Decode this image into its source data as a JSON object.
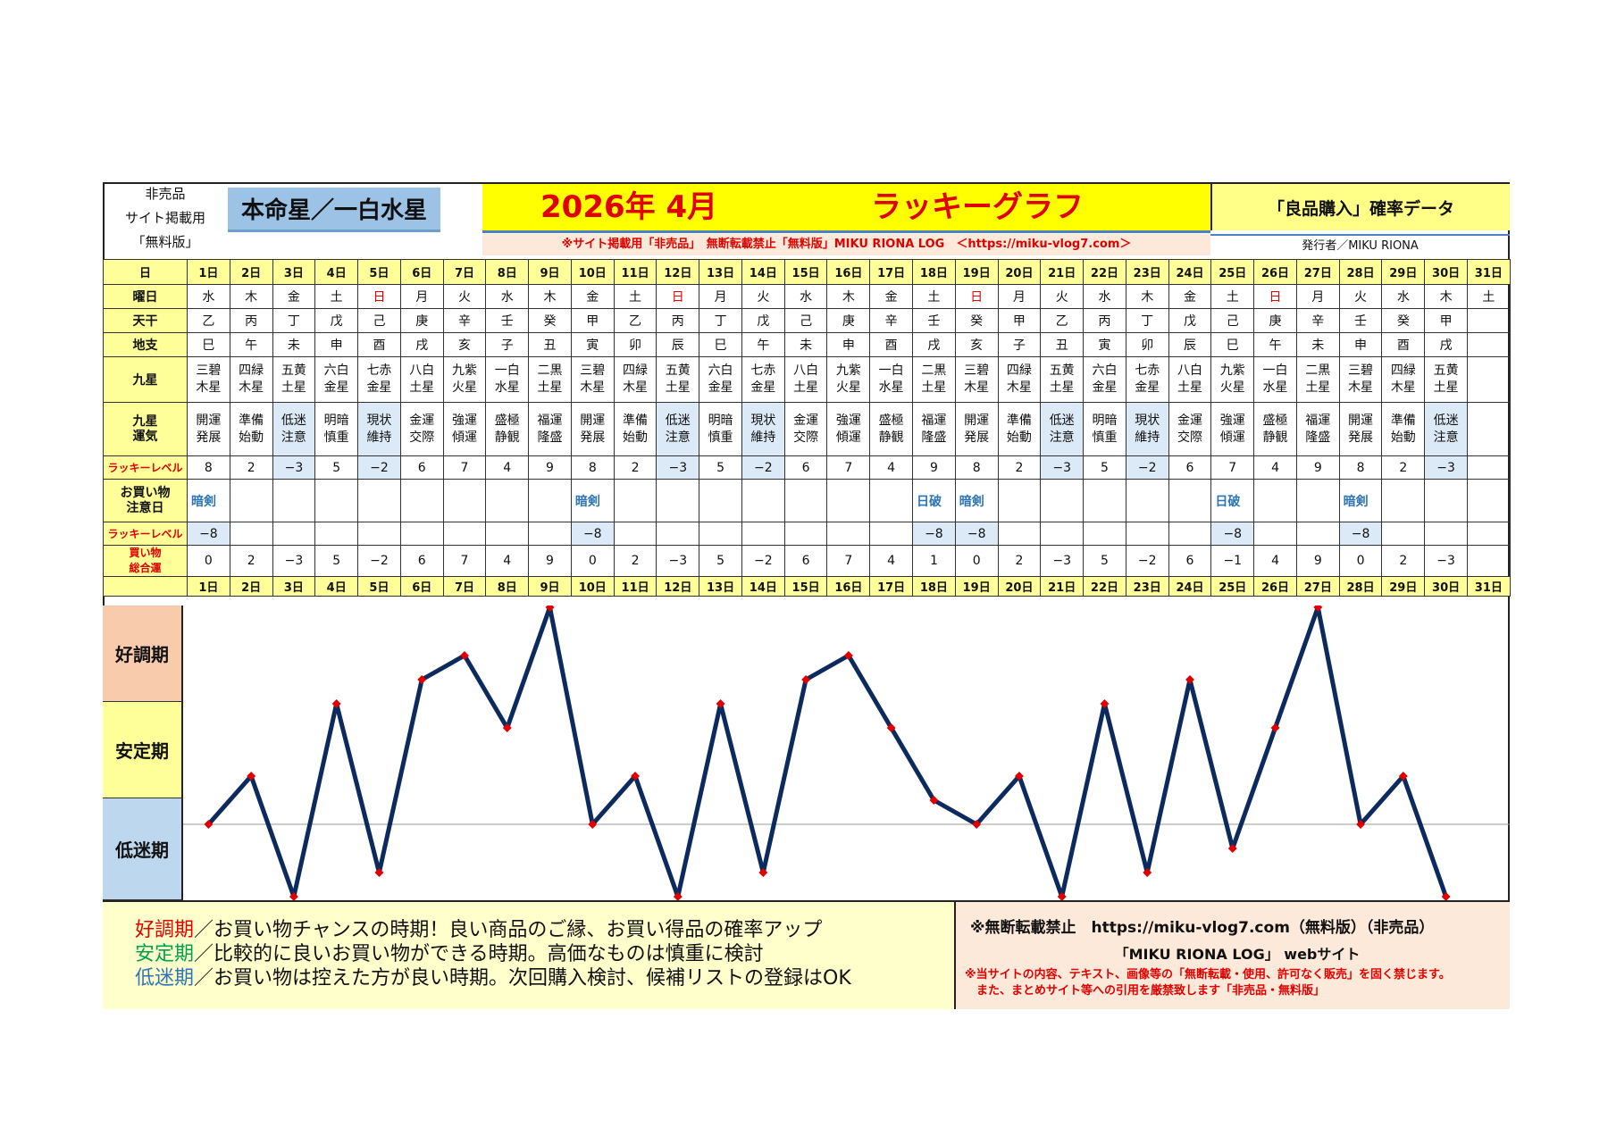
{
  "header": {
    "note_lines": [
      "非売品",
      "サイト掲載用",
      "「無料版」"
    ],
    "honmei": "本命星／一白水星",
    "year_month": "2026年 4月",
    "title": "ラッキーグラフ",
    "prob_label": "「良品購入」確率データ",
    "notice": "※サイト掲載用「非売品」　無断転載禁止「無料版」MIKU RIONA LOG　＜https://miku-vlog7.com＞",
    "publisher": "発行者／MIKU RIONA"
  },
  "row_labels": {
    "day": "日",
    "weekday": "曜日",
    "tenkan": "天干",
    "chishi": "地支",
    "kyusei": "九星",
    "kyusei_unki": [
      "九星",
      "運気"
    ],
    "lucky_level": "ラッキーレベル",
    "caution_day": [
      "お買い物",
      "注意日"
    ],
    "lucky_level2": "ラッキーレベル",
    "total": [
      "買い物",
      "総合運"
    ]
  },
  "days": [
    "1日",
    "2日",
    "3日",
    "4日",
    "5日",
    "6日",
    "7日",
    "8日",
    "9日",
    "10日",
    "11日",
    "12日",
    "13日",
    "14日",
    "15日",
    "16日",
    "17日",
    "18日",
    "19日",
    "20日",
    "21日",
    "22日",
    "23日",
    "24日",
    "25日",
    "26日",
    "27日",
    "28日",
    "29日",
    "30日",
    "31日"
  ],
  "weekdays": [
    "水",
    "木",
    "金",
    "土",
    "日",
    "月",
    "火",
    "水",
    "木",
    "金",
    "土",
    "日",
    "月",
    "火",
    "水",
    "木",
    "金",
    "土",
    "日",
    "月",
    "火",
    "水",
    "木",
    "金",
    "土",
    "日",
    "月",
    "火",
    "水",
    "木",
    "土"
  ],
  "tenkan": [
    "乙",
    "丙",
    "丁",
    "戊",
    "己",
    "庚",
    "辛",
    "壬",
    "癸",
    "甲",
    "乙",
    "丙",
    "丁",
    "戊",
    "己",
    "庚",
    "辛",
    "壬",
    "癸",
    "甲",
    "乙",
    "丙",
    "丁",
    "戊",
    "己",
    "庚",
    "辛",
    "壬",
    "癸",
    "甲",
    ""
  ],
  "chishi": [
    "巳",
    "午",
    "未",
    "申",
    "酉",
    "戌",
    "亥",
    "子",
    "丑",
    "寅",
    "卯",
    "辰",
    "巳",
    "午",
    "未",
    "申",
    "酉",
    "戌",
    "亥",
    "子",
    "丑",
    "寅",
    "卯",
    "辰",
    "巳",
    "午",
    "未",
    "申",
    "酉",
    "戌",
    ""
  ],
  "kyusei": [
    [
      "三碧",
      "木星"
    ],
    [
      "四緑",
      "木星"
    ],
    [
      "五黄",
      "土星"
    ],
    [
      "六白",
      "金星"
    ],
    [
      "七赤",
      "金星"
    ],
    [
      "八白",
      "土星"
    ],
    [
      "九紫",
      "火星"
    ],
    [
      "一白",
      "水星"
    ],
    [
      "二黒",
      "土星"
    ],
    [
      "三碧",
      "木星"
    ],
    [
      "四緑",
      "木星"
    ],
    [
      "五黄",
      "土星"
    ],
    [
      "六白",
      "金星"
    ],
    [
      "七赤",
      "金星"
    ],
    [
      "八白",
      "土星"
    ],
    [
      "九紫",
      "火星"
    ],
    [
      "一白",
      "水星"
    ],
    [
      "二黒",
      "土星"
    ],
    [
      "三碧",
      "木星"
    ],
    [
      "四緑",
      "木星"
    ],
    [
      "五黄",
      "土星"
    ],
    [
      "六白",
      "金星"
    ],
    [
      "七赤",
      "金星"
    ],
    [
      "八白",
      "土星"
    ],
    [
      "九紫",
      "火星"
    ],
    [
      "一白",
      "水星"
    ],
    [
      "二黒",
      "土星"
    ],
    [
      "三碧",
      "木星"
    ],
    [
      "四緑",
      "木星"
    ],
    [
      "五黄",
      "土星"
    ],
    [
      "",
      ""
    ]
  ],
  "unki": [
    [
      "開運",
      "発展"
    ],
    [
      "準備",
      "始動"
    ],
    [
      "低迷",
      "注意"
    ],
    [
      "明暗",
      "慎重"
    ],
    [
      "現状",
      "維持"
    ],
    [
      "金運",
      "交際"
    ],
    [
      "強運",
      "傾運"
    ],
    [
      "盛極",
      "静観"
    ],
    [
      "福運",
      "隆盛"
    ],
    [
      "開運",
      "発展"
    ],
    [
      "準備",
      "始動"
    ],
    [
      "低迷",
      "注意"
    ],
    [
      "明暗",
      "慎重"
    ],
    [
      "現状",
      "維持"
    ],
    [
      "金運",
      "交際"
    ],
    [
      "強運",
      "傾運"
    ],
    [
      "盛極",
      "静観"
    ],
    [
      "福運",
      "隆盛"
    ],
    [
      "開運",
      "発展"
    ],
    [
      "準備",
      "始動"
    ],
    [
      "低迷",
      "注意"
    ],
    [
      "明暗",
      "慎重"
    ],
    [
      "現状",
      "維持"
    ],
    [
      "金運",
      "交際"
    ],
    [
      "強運",
      "傾運"
    ],
    [
      "盛極",
      "静観"
    ],
    [
      "福運",
      "隆盛"
    ],
    [
      "開運",
      "発展"
    ],
    [
      "準備",
      "始動"
    ],
    [
      "低迷",
      "注意"
    ],
    [
      "",
      ""
    ]
  ],
  "lucky_level": [
    "8",
    "2",
    "−3",
    "5",
    "−2",
    "6",
    "7",
    "4",
    "9",
    "8",
    "2",
    "−3",
    "5",
    "−2",
    "6",
    "7",
    "4",
    "9",
    "8",
    "2",
    "−3",
    "5",
    "−2",
    "6",
    "7",
    "4",
    "9",
    "8",
    "2",
    "−3",
    ""
  ],
  "caution": [
    "暗剣",
    "",
    "",
    "",
    "",
    "",
    "",
    "",
    "",
    "暗剣",
    "",
    "",
    "",
    "",
    "",
    "",
    "",
    "日破",
    "暗剣",
    "",
    "",
    "",
    "",
    "",
    "日破",
    "",
    "",
    "暗剣",
    "",
    "",
    ""
  ],
  "lucky_level2": [
    "−8",
    "",
    "",
    "",
    "",
    "",
    "",
    "",
    "",
    "−8",
    "",
    "",
    "",
    "",
    "",
    "",
    "",
    "−8",
    "−8",
    "",
    "",
    "",
    "",
    "",
    "−8",
    "",
    "",
    "−8",
    "",
    "",
    ""
  ],
  "total_shown": [
    "0",
    "2",
    "−3",
    "5",
    "−2",
    "6",
    "7",
    "4",
    "9",
    "0",
    "2",
    "−3",
    "5",
    "−2",
    "6",
    "7",
    "4",
    "1",
    "0",
    "2",
    "−3",
    "5",
    "−2",
    "6",
    "−1",
    "4",
    "9",
    "0",
    "2",
    "−3",
    ""
  ],
  "zones": {
    "good": "好調期",
    "stable": "安定期",
    "low": "低迷期"
  },
  "colors": {
    "good_zone": "#f8cbad",
    "stable_zone": "#ffff99",
    "low_zone": "#bdd7ee",
    "line": "#0d2a5e",
    "marker": "#e00000"
  },
  "chart_data": {
    "type": "line",
    "x": [
      1,
      2,
      3,
      4,
      5,
      6,
      7,
      8,
      9,
      10,
      11,
      12,
      13,
      14,
      15,
      16,
      17,
      18,
      19,
      20,
      21,
      22,
      23,
      24,
      25,
      26,
      27,
      28,
      29,
      30
    ],
    "series": [
      {
        "values": [
          0,
          2,
          -3,
          5,
          -2,
          6,
          7,
          4,
          9,
          0,
          2,
          -3,
          5,
          -2,
          6,
          7,
          4,
          1,
          0,
          2,
          -3,
          5,
          -2,
          6,
          -1,
          4,
          9,
          0,
          2,
          -3
        ]
      }
    ],
    "ylim": [
      -3,
      9
    ]
  },
  "footer": {
    "good_label": "好調期",
    "good_text": "／お買い物チャンスの時期！良い商品のご縁、お買い得品の確率アップ",
    "stable_label": "安定期",
    "stable_text": "／比較的に良いお買い物ができる時期。高価なものは慎重に検討",
    "low_label": "低迷期",
    "low_text": "／お買い物は控えた方が良い時期。次回購入検討、候補リストの登録はOK",
    "right1": "※無断転載禁止　https://miku-vlog7.com（無料版）（非売品）",
    "right2": "「MIKU RIONA LOG」 webサイト",
    "right3": "※当サイトの内容、テキスト、画像等の「無断転載・使用、許可なく販売」を固く禁じます。",
    "right4": "　また、まとめサイト等への引用を厳禁致します「非売品・無料版」"
  }
}
